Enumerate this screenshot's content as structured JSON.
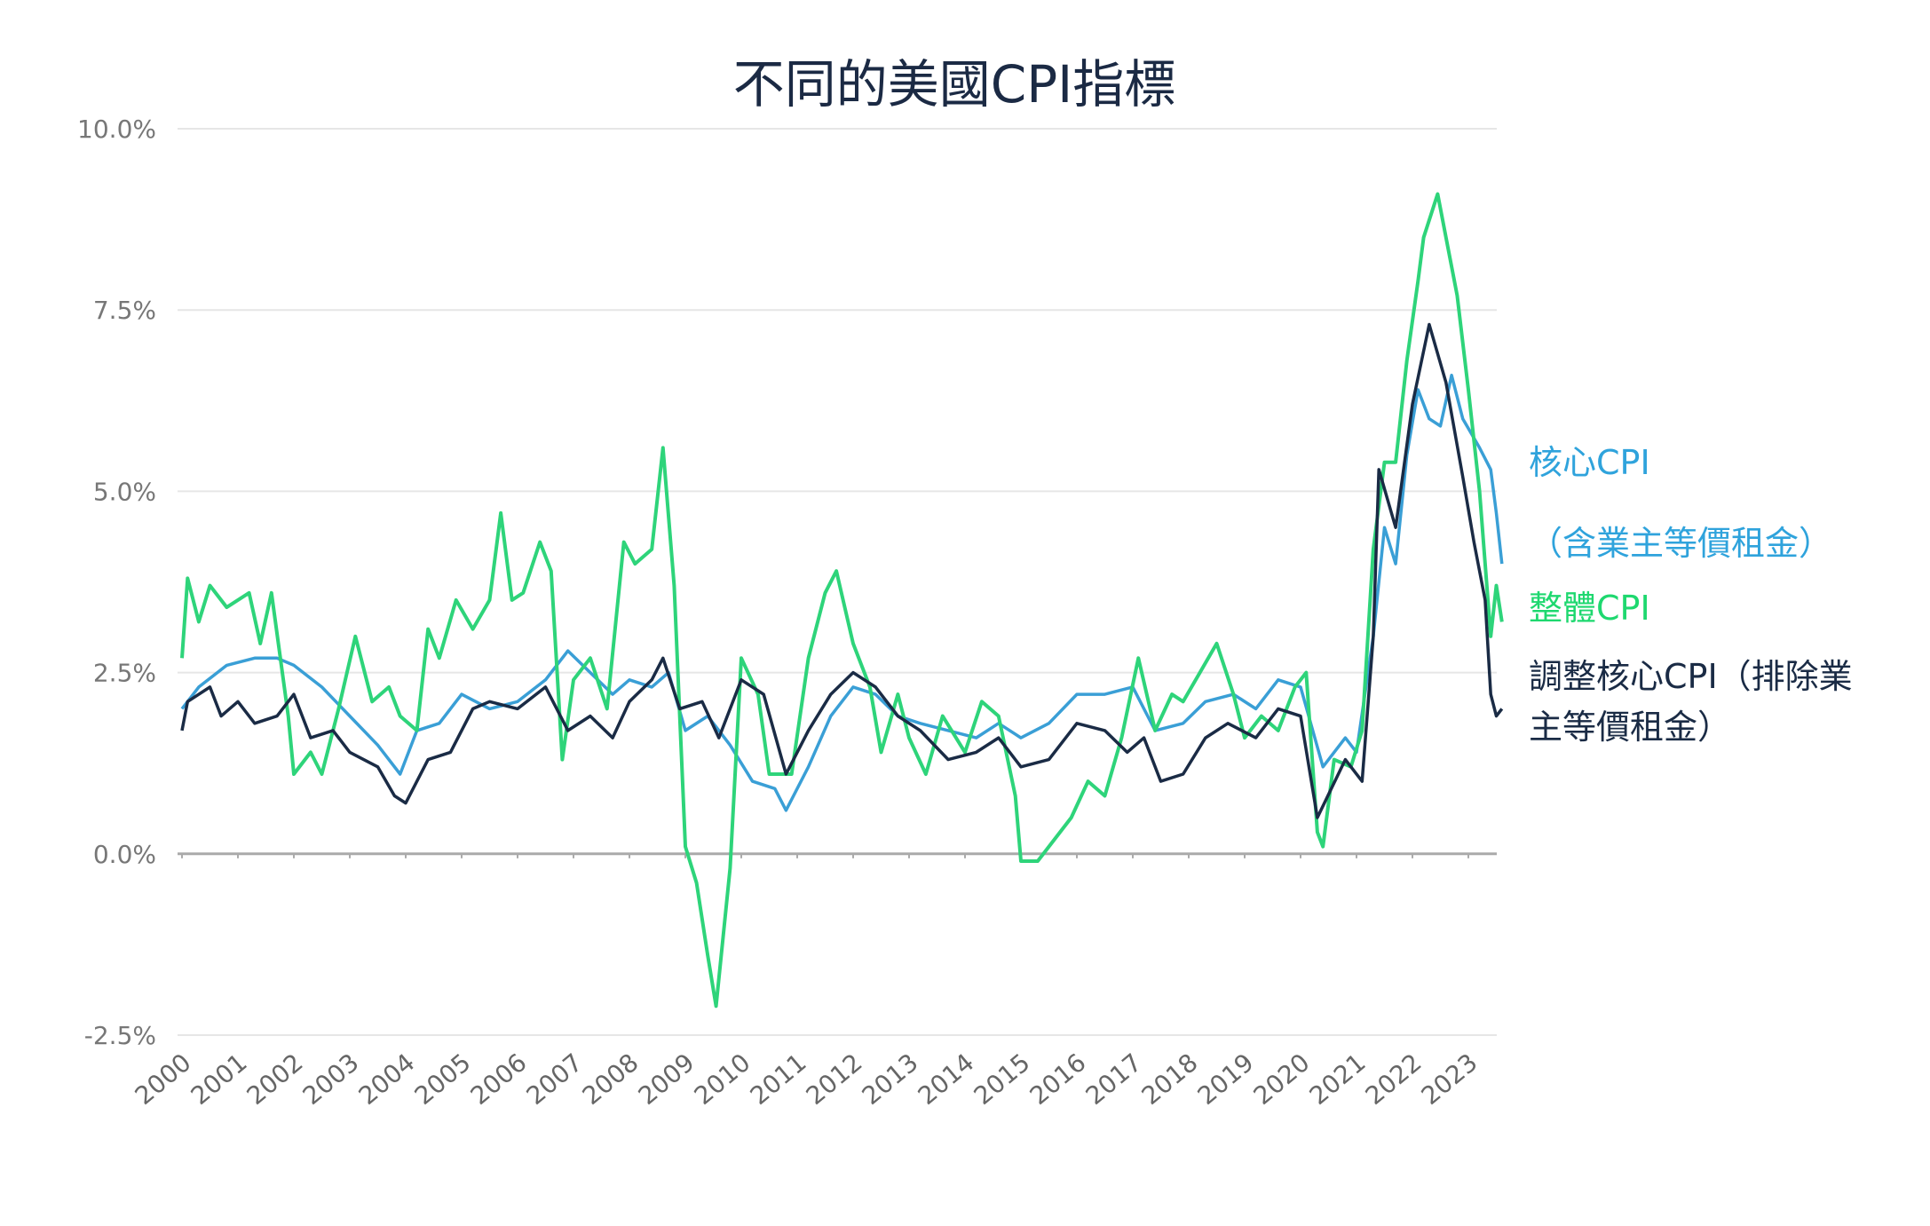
{
  "chart_data": {
    "type": "line",
    "title": "不同的美國CPI指標",
    "xlabel": "",
    "ylabel": "",
    "ylim": [
      -2.5,
      10.0
    ],
    "xlim": [
      2000,
      2023.6
    ],
    "y_ticks": [
      "10.0%",
      "7.5%",
      "5.0%",
      "2.5%",
      "0.0%",
      "-2.5%"
    ],
    "y_tick_values": [
      10.0,
      7.5,
      5.0,
      2.5,
      0.0,
      -2.5
    ],
    "x_ticks": [
      "2000",
      "2001",
      "2002",
      "2003",
      "2004",
      "2005",
      "2006",
      "2007",
      "2008",
      "2009",
      "2010",
      "2011",
      "2012",
      "2013",
      "2014",
      "2015",
      "2016",
      "2017",
      "2018",
      "2019",
      "2020",
      "2021",
      "2022",
      "2023"
    ],
    "grid": "horizontal",
    "legend_placement": "right",
    "series": [
      {
        "name": "核心CPI（含業主等價租金）",
        "legend_lines": [
          "核心CPI",
          "（含業主等價租金）"
        ],
        "color": "#3a9fd6",
        "x": [
          2000,
          2000.3,
          2000.8,
          2001.3,
          2001.7,
          2002.0,
          2002.5,
          2003.0,
          2003.5,
          2003.9,
          2004.2,
          2004.6,
          2005.0,
          2005.5,
          2006.0,
          2006.5,
          2006.9,
          2007.3,
          2007.7,
          2008.0,
          2008.4,
          2008.7,
          2009.0,
          2009.4,
          2009.8,
          2010.2,
          2010.6,
          2010.8,
          2011.2,
          2011.6,
          2012.0,
          2012.4,
          2012.8,
          2013.2,
          2013.7,
          2014.2,
          2014.6,
          2015.0,
          2015.5,
          2016.0,
          2016.5,
          2017.0,
          2017.4,
          2017.9,
          2018.3,
          2018.8,
          2019.2,
          2019.6,
          2020.0,
          2020.4,
          2020.8,
          2021.0,
          2021.3,
          2021.5,
          2021.7,
          2021.9,
          2022.1,
          2022.3,
          2022.5,
          2022.7,
          2022.9,
          2023.2,
          2023.4,
          2023.5,
          2023.6
        ],
        "y": [
          2.0,
          2.3,
          2.6,
          2.7,
          2.7,
          2.6,
          2.3,
          1.9,
          1.5,
          1.1,
          1.7,
          1.8,
          2.2,
          2.0,
          2.1,
          2.4,
          2.8,
          2.5,
          2.2,
          2.4,
          2.3,
          2.5,
          1.7,
          1.9,
          1.5,
          1.0,
          0.9,
          0.6,
          1.2,
          1.9,
          2.3,
          2.2,
          1.9,
          1.8,
          1.7,
          1.6,
          1.8,
          1.6,
          1.8,
          2.2,
          2.2,
          2.3,
          1.7,
          1.8,
          2.1,
          2.2,
          2.0,
          2.4,
          2.3,
          1.2,
          1.6,
          1.4,
          3.0,
          4.5,
          4.0,
          5.5,
          6.4,
          6.0,
          5.9,
          6.6,
          6.0,
          5.6,
          5.3,
          4.7,
          4.0
        ]
      },
      {
        "name": "整體CPI",
        "legend_lines": [
          "整體CPI"
        ],
        "color": "#2ed47a",
        "x": [
          2000.0,
          2000.1,
          2000.3,
          2000.5,
          2000.8,
          2001.0,
          2001.2,
          2001.4,
          2001.6,
          2001.9,
          2002.0,
          2002.3,
          2002.5,
          2002.8,
          2003.1,
          2003.4,
          2003.7,
          2003.9,
          2004.2,
          2004.4,
          2004.6,
          2004.9,
          2005.2,
          2005.5,
          2005.7,
          2005.9,
          2006.1,
          2006.4,
          2006.6,
          2006.8,
          2007.0,
          2007.3,
          2007.6,
          2007.9,
          2008.1,
          2008.4,
          2008.6,
          2008.8,
          2009.0,
          2009.2,
          2009.4,
          2009.55,
          2009.8,
          2010.0,
          2010.3,
          2010.5,
          2010.9,
          2011.2,
          2011.5,
          2011.7,
          2012.0,
          2012.3,
          2012.5,
          2012.8,
          2013.0,
          2013.3,
          2013.6,
          2014.0,
          2014.3,
          2014.6,
          2014.9,
          2015.0,
          2015.3,
          2015.6,
          2015.9,
          2016.2,
          2016.5,
          2016.8,
          2017.1,
          2017.4,
          2017.7,
          2017.9,
          2018.2,
          2018.5,
          2018.8,
          2019.0,
          2019.3,
          2019.6,
          2019.9,
          2020.1,
          2020.3,
          2020.4,
          2020.6,
          2020.9,
          2021.1,
          2021.3,
          2021.5,
          2021.7,
          2021.9,
          2022.1,
          2022.2,
          2022.45,
          2022.6,
          2022.8,
          2023.0,
          2023.2,
          2023.4,
          2023.5,
          2023.6
        ],
        "y": [
          2.7,
          3.8,
          3.2,
          3.7,
          3.4,
          3.5,
          3.6,
          2.9,
          3.6,
          1.9,
          1.1,
          1.4,
          1.1,
          2.0,
          3.0,
          2.1,
          2.3,
          1.9,
          1.7,
          3.1,
          2.7,
          3.5,
          3.1,
          3.5,
          4.7,
          3.5,
          3.6,
          4.3,
          3.9,
          1.3,
          2.4,
          2.7,
          2.0,
          4.3,
          4.0,
          4.2,
          5.6,
          3.7,
          0.1,
          -0.4,
          -1.4,
          -2.1,
          -0.2,
          2.7,
          2.2,
          1.1,
          1.1,
          2.7,
          3.6,
          3.9,
          2.9,
          2.3,
          1.4,
          2.2,
          1.6,
          1.1,
          1.9,
          1.4,
          2.1,
          1.9,
          0.8,
          -0.1,
          -0.1,
          0.2,
          0.5,
          1.0,
          0.8,
          1.6,
          2.7,
          1.7,
          2.2,
          2.1,
          2.5,
          2.9,
          2.2,
          1.6,
          1.9,
          1.7,
          2.3,
          2.5,
          0.3,
          0.1,
          1.3,
          1.2,
          1.7,
          4.2,
          5.4,
          5.4,
          6.8,
          7.9,
          8.5,
          9.1,
          8.5,
          7.7,
          6.4,
          5.0,
          3.0,
          3.7,
          3.2
        ]
      },
      {
        "name": "調整核心CPI（排除業主等價租金）",
        "legend_lines": [
          "調整核心CPI（排除業",
          "主等價租金）"
        ],
        "color": "#1a2b45",
        "x": [
          2000,
          2000.1,
          2000.5,
          2000.7,
          2001.0,
          2001.3,
          2001.7,
          2002.0,
          2002.3,
          2002.7,
          2003.0,
          2003.5,
          2003.8,
          2004.0,
          2004.4,
          2004.8,
          2005.2,
          2005.5,
          2006.0,
          2006.5,
          2006.9,
          2007.3,
          2007.7,
          2008.0,
          2008.4,
          2008.6,
          2008.9,
          2009.3,
          2009.6,
          2010.0,
          2010.4,
          2010.8,
          2011.2,
          2011.6,
          2012.0,
          2012.4,
          2012.8,
          2013.2,
          2013.7,
          2014.2,
          2014.6,
          2015.0,
          2015.5,
          2016.0,
          2016.5,
          2016.9,
          2017.2,
          2017.5,
          2017.9,
          2018.3,
          2018.7,
          2019.2,
          2019.6,
          2020.0,
          2020.3,
          2020.8,
          2021.1,
          2021.3,
          2021.4,
          2021.7,
          2022.0,
          2022.3,
          2022.6,
          2022.9,
          2023.1,
          2023.3,
          2023.4,
          2023.5,
          2023.6
        ],
        "y": [
          1.7,
          2.1,
          2.3,
          1.9,
          2.1,
          1.8,
          1.9,
          2.2,
          1.6,
          1.7,
          1.4,
          1.2,
          0.8,
          0.7,
          1.3,
          1.4,
          2.0,
          2.1,
          2.0,
          2.3,
          1.7,
          1.9,
          1.6,
          2.1,
          2.4,
          2.7,
          2.0,
          2.1,
          1.6,
          2.4,
          2.2,
          1.1,
          1.7,
          2.2,
          2.5,
          2.3,
          1.9,
          1.7,
          1.3,
          1.4,
          1.6,
          1.2,
          1.3,
          1.8,
          1.7,
          1.4,
          1.6,
          1.0,
          1.1,
          1.6,
          1.8,
          1.6,
          2.0,
          1.9,
          0.5,
          1.3,
          1.0,
          3.0,
          5.3,
          4.5,
          6.2,
          7.3,
          6.5,
          5.2,
          4.3,
          3.5,
          2.2,
          1.9,
          2.0
        ]
      }
    ]
  }
}
